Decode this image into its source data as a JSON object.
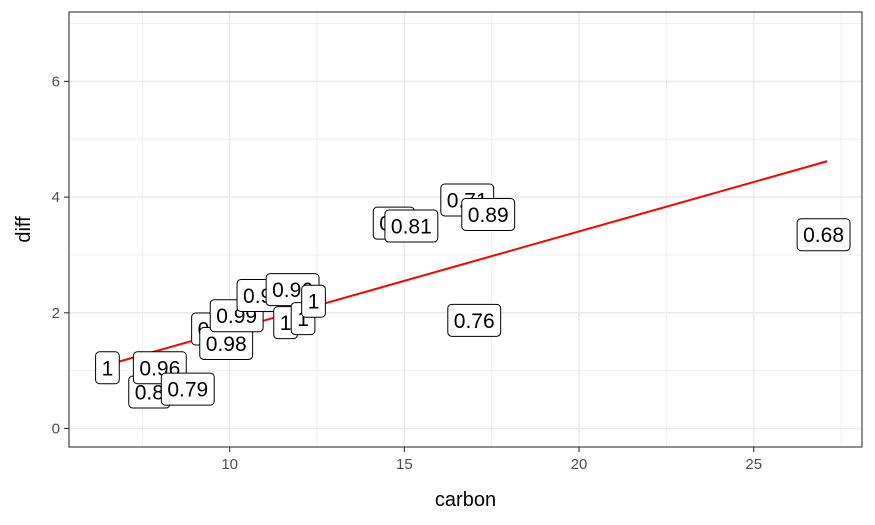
{
  "chart_data": {
    "type": "scatter",
    "title": "",
    "xlabel": "carbon",
    "ylabel": "diff",
    "xlim": [
      5.4,
      28.1
    ],
    "ylim": [
      -0.32,
      7.2
    ],
    "x_ticks": [
      10,
      15,
      20,
      25
    ],
    "y_ticks": [
      0,
      2,
      4,
      6
    ],
    "x_tick_labels": [
      "10",
      "15",
      "20",
      "25"
    ],
    "y_tick_labels": [
      "0",
      "2",
      "4",
      "6"
    ],
    "grid": true,
    "legend": "none",
    "colors": {
      "fit_line": "#ff0000",
      "grid": "#ebebeb",
      "panel_border": "#333333"
    },
    "points": [
      {
        "x": 6.5,
        "y": 1.05,
        "label": "1"
      },
      {
        "x": 7.7,
        "y": 0.63,
        "label": "0.8"
      },
      {
        "x": 8.0,
        "y": 1.05,
        "label": "0.96"
      },
      {
        "x": 8.8,
        "y": 0.68,
        "label": "0.79"
      },
      {
        "x": 9.5,
        "y": 1.72,
        "label": "0.9"
      },
      {
        "x": 9.9,
        "y": 1.47,
        "label": "0.98"
      },
      {
        "x": 10.2,
        "y": 1.95,
        "label": "0.99"
      },
      {
        "x": 10.8,
        "y": 2.3,
        "label": "0.9"
      },
      {
        "x": 11.6,
        "y": 1.83,
        "label": "1"
      },
      {
        "x": 11.8,
        "y": 2.4,
        "label": "0.96"
      },
      {
        "x": 12.1,
        "y": 1.9,
        "label": "1"
      },
      {
        "x": 12.4,
        "y": 2.2,
        "label": "1"
      },
      {
        "x": 14.7,
        "y": 3.55,
        "label": "0.8"
      },
      {
        "x": 15.2,
        "y": 3.5,
        "label": "0.81"
      },
      {
        "x": 16.8,
        "y": 3.95,
        "label": "0.71"
      },
      {
        "x": 17.4,
        "y": 3.7,
        "label": "0.89"
      },
      {
        "x": 17.0,
        "y": 1.87,
        "label": "0.76"
      },
      {
        "x": 27.0,
        "y": 3.35,
        "label": "0.68"
      }
    ],
    "fit_line": {
      "x": [
        6.5,
        27.1
      ],
      "y": [
        1.1,
        4.62
      ]
    }
  }
}
